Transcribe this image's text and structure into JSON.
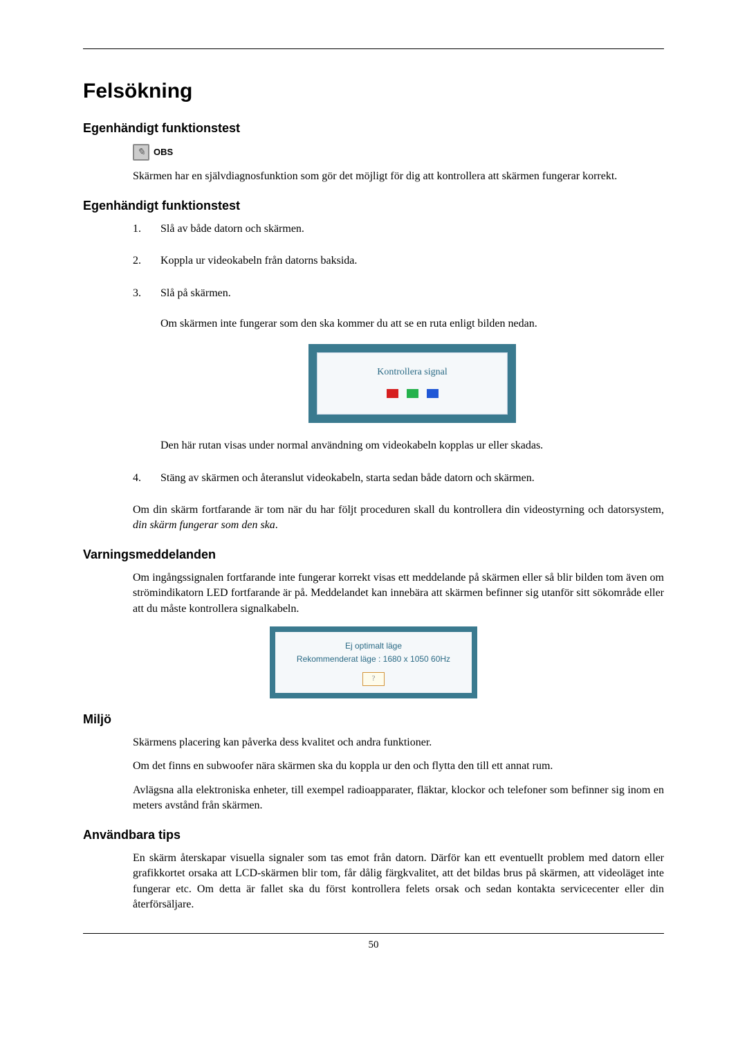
{
  "page_number": "50",
  "title": "Felsökning",
  "sections": [
    {
      "heading": "Egenhändigt funktionstest",
      "obs_label": "OBS",
      "intro": "Skärmen har en självdiagnosfunktion som gör det möjligt för dig att kontrollera att skärmen fungerar korrekt."
    },
    {
      "heading": "Egenhändigt funktionstest",
      "steps": [
        {
          "n": "1.",
          "text": "Slå av både datorn och skärmen."
        },
        {
          "n": "2.",
          "text": "Koppla ur videokabeln från datorns baksida."
        },
        {
          "n": "3.",
          "text": "Slå på skärmen.",
          "sub": "Om skärmen inte fungerar som den ska kommer du att se en ruta enligt bilden nedan.",
          "dialog": {
            "outer_bg": "#3a7a8f",
            "inner_bg": "#f5f8fa",
            "text": "Kontrollera signal",
            "text_color": "#2a6a85",
            "squares": [
              "#d61f1f",
              "#24b24c",
              "#1f57d6"
            ]
          },
          "after": "Den här rutan visas under normal användning om videokabeln kopplas ur eller skadas."
        },
        {
          "n": "4.",
          "text": "Stäng av skärmen och återanslut videokabeln, starta sedan både datorn och skärmen."
        }
      ],
      "closing": "Om din skärm fortfarande är tom när du har följt proceduren skall du kontrollera din videostyrning och datorsystem, ",
      "closing_italic": "din skärm fungerar som den ska",
      "closing_end": "."
    },
    {
      "heading": "Varningsmeddelanden",
      "para": "Om ingångssignalen fortfarande inte fungerar korrekt visas ett meddelande på skärmen eller så blir bilden tom även om strömindikatorn LED fortfarande är på. Meddelandet kan innebära att skärmen befinner sig utanför sitt sökområde eller att du måste kontrollera signalkabeln.",
      "dialog2": {
        "outer_bg": "#3a7a8f",
        "inner_bg": "#f5f8fa",
        "line1": "Ej optimalt läge",
        "line2": "Rekommenderat läge : 1680 x 1050  60Hz",
        "card_border": "#d4953a",
        "card_bg": "#fefcec",
        "card_text": "?"
      }
    },
    {
      "heading": "Miljö",
      "paras": [
        "Skärmens placering kan påverka dess kvalitet och andra funktioner.",
        "Om det finns en subwoofer nära skärmen ska du koppla ur den och flytta den till ett annat rum.",
        "Avlägsna alla elektroniska enheter, till exempel radioapparater, fläktar, klockor och telefoner som befinner sig inom en meters avstånd från skärmen."
      ]
    },
    {
      "heading": "Användbara tips",
      "para": "En skärm återskapar visuella signaler som tas emot från datorn. Därför kan ett eventuellt problem med datorn eller grafikkortet orsaka att LCD-skärmen blir tom, får dålig färgkvalitet, att det bildas brus på skärmen, att videoläget inte fungerar etc. Om detta är fallet ska du först kontrollera felets orsak och sedan kontakta servicecenter eller din återförsäljare."
    }
  ]
}
